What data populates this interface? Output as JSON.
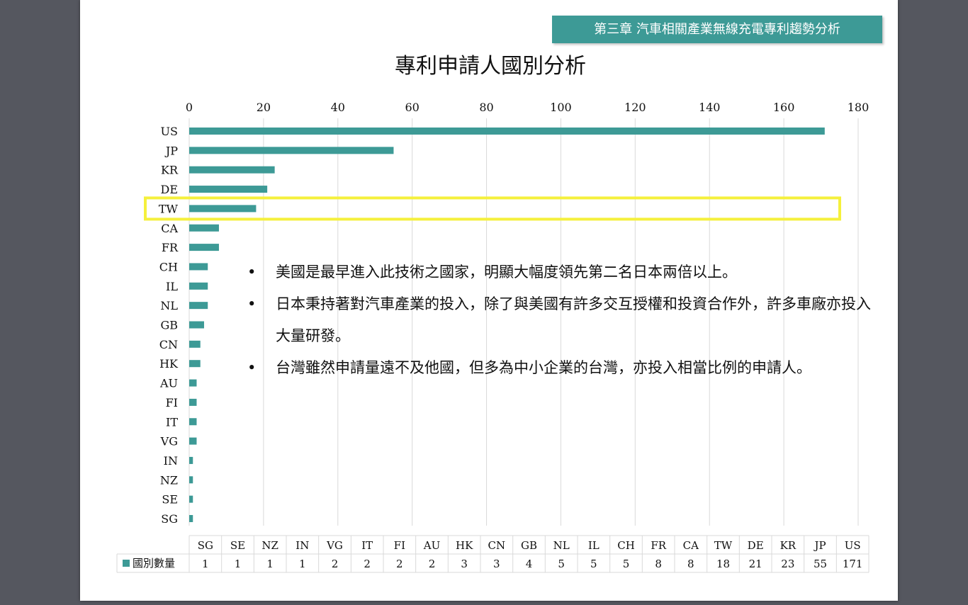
{
  "header": {
    "chapter_title": "第三章 汽車相關產業無線充電專利趨勢分析"
  },
  "chart_data": {
    "type": "bar",
    "orientation": "horizontal",
    "title": "專利申請人國別分析",
    "categories": [
      "US",
      "JP",
      "KR",
      "DE",
      "TW",
      "CA",
      "FR",
      "CH",
      "IL",
      "NL",
      "GB",
      "CN",
      "HK",
      "AU",
      "FI",
      "IT",
      "VG",
      "IN",
      "NZ",
      "SE",
      "SG"
    ],
    "series": [
      {
        "name": "國別數量",
        "values": [
          171,
          55,
          23,
          21,
          18,
          8,
          8,
          5,
          5,
          5,
          4,
          3,
          3,
          2,
          2,
          2,
          2,
          1,
          1,
          1,
          1
        ],
        "color": "#3d9a96"
      }
    ],
    "xlim": [
      0,
      180
    ],
    "ticks": [
      "0",
      "20",
      "40",
      "60",
      "80",
      "100",
      "120",
      "140",
      "160",
      "180"
    ],
    "grid": true,
    "highlight_category": "TW",
    "highlight_color": "#f5f03c",
    "table": {
      "legend_label": "國別數量",
      "categories": [
        "SG",
        "SE",
        "NZ",
        "IN",
        "VG",
        "IT",
        "FI",
        "AU",
        "HK",
        "CN",
        "GB",
        "NL",
        "IL",
        "CH",
        "FR",
        "CA",
        "TW",
        "DE",
        "KR",
        "JP",
        "US"
      ],
      "values": [
        "1",
        "1",
        "1",
        "1",
        "2",
        "2",
        "2",
        "2",
        "3",
        "3",
        "4",
        "5",
        "5",
        "5",
        "8",
        "8",
        "18",
        "21",
        "23",
        "55",
        "171"
      ]
    }
  },
  "notes": {
    "bullet": "•",
    "items": [
      "美國是最早進入此技術之國家，明顯大幅度領先第二名日本兩倍以上。",
      "日本秉持著對汽車產業的投入，除了與美國有許多交互授權和投資合作外，許多車廠亦投入大量研發。",
      "台灣雖然申請量遠不及他國，但多為中小企業的台灣，亦投入相當比例的申請人。"
    ]
  }
}
